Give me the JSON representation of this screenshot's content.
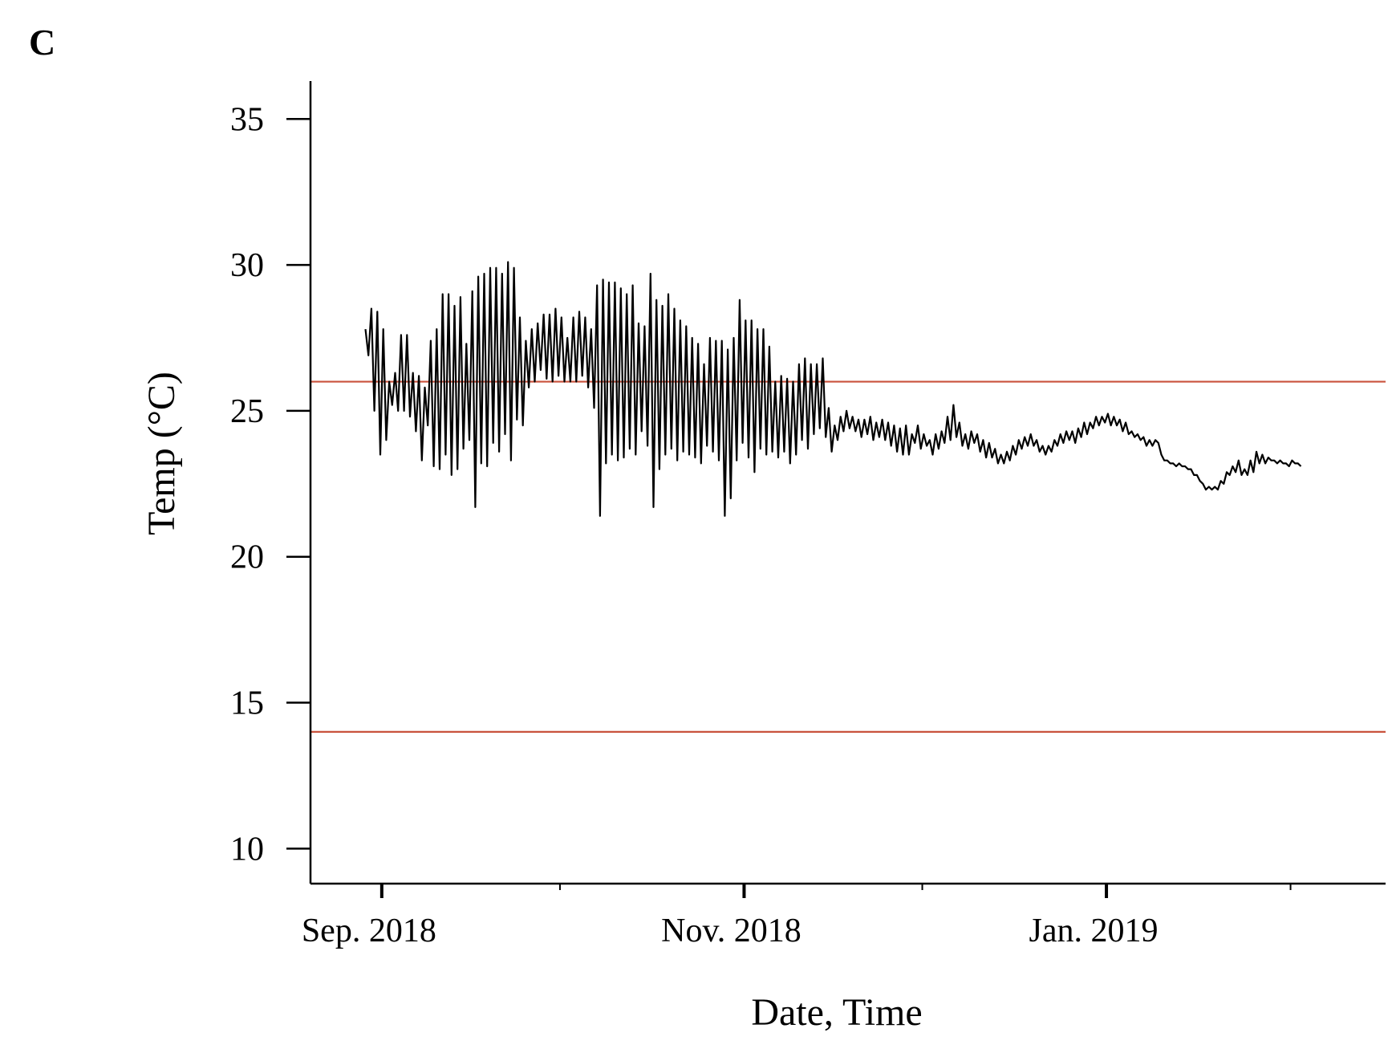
{
  "panel_label": "C",
  "colors": {
    "series": "#000000",
    "reference_line": "#c9523c",
    "axis": "#000000"
  },
  "chart_data": {
    "type": "line",
    "title": "",
    "xlabel": "Date, Time",
    "ylabel": "Temp (°C)",
    "ylim": [
      8.8,
      36.3
    ],
    "xlim": [
      "2018-08-20",
      "2019-02-17"
    ],
    "yticks": [
      10,
      15,
      20,
      25,
      30,
      35
    ],
    "ytick_labels": [
      "10",
      "15",
      "20",
      "25",
      "30",
      "35"
    ],
    "xticks": [
      {
        "date": "2018-09-01",
        "label": "Sep. 2018",
        "major": true
      },
      {
        "date": "2018-10-01",
        "label": "",
        "major": false
      },
      {
        "date": "2018-11-01",
        "label": "Nov. 2018",
        "major": true
      },
      {
        "date": "2018-12-01",
        "label": "",
        "major": false
      },
      {
        "date": "2019-01-01",
        "label": "Jan. 2019",
        "major": true
      },
      {
        "date": "2019-02-01",
        "label": "",
        "major": false
      }
    ],
    "reference_lines": [
      {
        "y": 26,
        "color": "#c9523c"
      },
      {
        "y": 14,
        "color": "#c9523c"
      }
    ],
    "grid": false,
    "legend": "none",
    "series": [
      {
        "x": [
          "2018-08-29",
          "2018-08-30",
          "2018-08-31",
          "2018-09-01",
          "2018-09-02",
          "2018-09-03",
          "2018-09-04",
          "2018-09-05",
          "2018-09-06",
          "2018-09-07",
          "2018-09-08",
          "2018-09-09",
          "2018-09-10",
          "2018-09-11",
          "2018-09-12",
          "2018-09-13",
          "2018-09-14",
          "2018-09-15",
          "2018-09-16",
          "2018-09-17",
          "2018-09-18",
          "2018-09-19",
          "2018-09-20",
          "2018-09-21",
          "2018-09-22",
          "2018-09-23",
          "2018-09-24",
          "2018-09-25",
          "2018-09-26",
          "2018-09-27",
          "2018-09-28",
          "2018-09-29",
          "2018-09-30",
          "2018-10-01",
          "2018-10-02",
          "2018-10-03",
          "2018-10-04",
          "2018-10-05",
          "2018-10-06",
          "2018-10-07",
          "2018-10-08",
          "2018-10-09",
          "2018-10-10",
          "2018-10-11",
          "2018-10-12",
          "2018-10-13",
          "2018-10-14",
          "2018-10-15",
          "2018-10-16",
          "2018-10-17",
          "2018-10-18",
          "2018-10-19",
          "2018-10-20",
          "2018-10-21",
          "2018-10-22",
          "2018-10-23",
          "2018-10-24",
          "2018-10-25",
          "2018-10-26",
          "2018-10-27",
          "2018-10-28",
          "2018-10-29",
          "2018-10-30",
          "2018-10-31",
          "2018-11-01",
          "2018-11-02",
          "2018-11-03",
          "2018-11-04",
          "2018-11-05",
          "2018-11-06",
          "2018-11-07",
          "2018-11-08",
          "2018-11-09",
          "2018-11-10",
          "2018-11-11",
          "2018-11-12",
          "2018-11-13",
          "2018-11-14",
          "2018-11-15",
          "2018-11-16",
          "2018-11-17",
          "2018-11-18",
          "2018-11-19",
          "2018-11-20",
          "2018-11-21",
          "2018-11-22",
          "2018-11-23",
          "2018-11-24",
          "2018-11-25",
          "2018-11-26",
          "2018-11-27",
          "2018-11-28",
          "2018-11-29",
          "2018-11-30",
          "2018-12-01",
          "2018-12-02",
          "2018-12-03",
          "2018-12-04",
          "2018-12-05",
          "2018-12-06",
          "2018-12-07",
          "2018-12-08",
          "2018-12-09",
          "2018-12-10",
          "2018-12-11",
          "2018-12-12",
          "2018-12-13",
          "2018-12-14",
          "2018-12-15",
          "2018-12-16",
          "2018-12-17",
          "2018-12-18",
          "2018-12-19",
          "2018-12-20",
          "2018-12-21",
          "2018-12-22",
          "2018-12-23",
          "2018-12-24",
          "2018-12-25",
          "2018-12-26",
          "2018-12-27",
          "2018-12-28",
          "2018-12-29",
          "2018-12-30",
          "2018-12-31",
          "2019-01-01",
          "2019-01-02",
          "2019-01-03",
          "2019-01-04",
          "2019-01-05",
          "2019-01-06",
          "2019-01-07",
          "2019-01-08",
          "2019-01-09",
          "2019-01-10",
          "2019-01-11",
          "2019-01-12",
          "2019-01-13",
          "2019-01-14",
          "2019-01-15",
          "2019-01-16",
          "2019-01-17",
          "2019-01-18",
          "2019-01-19",
          "2019-01-20",
          "2019-01-21",
          "2019-01-22",
          "2019-01-23",
          "2019-01-24",
          "2019-01-25",
          "2019-01-26",
          "2019-01-27",
          "2019-01-28",
          "2019-01-29",
          "2019-01-30",
          "2019-01-31",
          "2019-02-01",
          "2019-02-02",
          "2019-02-03",
          "2019-02-04",
          "2019-02-05",
          "2019-02-06",
          "2019-02-07",
          "2019-02-08",
          "2019-02-09",
          "2019-02-10",
          "2019-02-11",
          "2019-02-12",
          "2019-02-13",
          "2019-02-14",
          "2019-02-15",
          "2019-02-16"
        ],
        "max": [
          27.8,
          28.5,
          28.4,
          27.8,
          26.0,
          26.3,
          27.6,
          27.6,
          26.3,
          26.2,
          25.8,
          27.4,
          27.8,
          29.0,
          29.0,
          28.6,
          28.9,
          27.3,
          29.1,
          29.6,
          29.7,
          29.9,
          29.9,
          29.7,
          30.1,
          29.9,
          28.2,
          27.4,
          27.8,
          28.0,
          28.3,
          28.3,
          28.5,
          28.2,
          27.5,
          28.2,
          28.4,
          28.2,
          27.8,
          29.3,
          29.5,
          29.4,
          29.4,
          29.2,
          29.0,
          29.3,
          28.0,
          27.9,
          29.7,
          28.8,
          28.6,
          29.0,
          28.5,
          28.1,
          27.9,
          27.5,
          27.3,
          26.6,
          27.5,
          27.4,
          27.4,
          27.1,
          27.5,
          28.8,
          28.1,
          28.1,
          27.8,
          27.8,
          27.2,
          26.0,
          26.2,
          26.1,
          26.0,
          26.6,
          26.8,
          26.6,
          26.6,
          26.8,
          25.1,
          24.5,
          24.8,
          25.0,
          24.8,
          24.7,
          24.7,
          24.8,
          24.6,
          24.7,
          24.6,
          24.5,
          24.4,
          24.5,
          24.2,
          24.5,
          24.2,
          24.0,
          24.2,
          24.3,
          24.8,
          25.2,
          24.6,
          24.2,
          24.3,
          24.2,
          24.0,
          23.9,
          23.7,
          23.5,
          23.6,
          23.8,
          24.0,
          24.1,
          24.2,
          24.0,
          23.8,
          23.8,
          24.0,
          24.2,
          24.3,
          24.3,
          24.4,
          24.6,
          24.6,
          24.8,
          24.8,
          24.9,
          24.8,
          24.7,
          24.6,
          24.3,
          24.2,
          24.1,
          24.0,
          24.0,
          23.5,
          23.3,
          23.2,
          23.2,
          23.1,
          23.0,
          22.8,
          22.5,
          22.4,
          22.4,
          22.6,
          22.9,
          23.1,
          23.3,
          23.0,
          23.3,
          23.6,
          23.5,
          23.4,
          23.3,
          23.3,
          23.2,
          23.3,
          23.2
        ],
        "min": [
          26.9,
          25.0,
          23.5,
          24.0,
          25.2,
          25.0,
          25.0,
          24.8,
          24.3,
          23.3,
          24.5,
          23.1,
          23.0,
          23.5,
          22.8,
          23.0,
          23.7,
          24.0,
          21.7,
          23.2,
          23.1,
          23.9,
          23.6,
          24.2,
          23.3,
          24.7,
          24.5,
          25.8,
          26.0,
          26.4,
          26.1,
          26.0,
          26.2,
          26.0,
          26.0,
          26.0,
          26.2,
          25.8,
          25.1,
          21.4,
          23.2,
          23.5,
          23.3,
          23.4,
          23.7,
          23.5,
          24.3,
          23.8,
          21.7,
          23.0,
          23.5,
          23.7,
          23.3,
          23.6,
          23.5,
          23.4,
          23.2,
          23.8,
          23.6,
          23.3,
          21.4,
          22.0,
          23.3,
          23.9,
          23.4,
          22.9,
          23.7,
          23.5,
          23.6,
          23.4,
          23.6,
          23.2,
          23.5,
          24.0,
          23.7,
          24.2,
          24.4,
          24.1,
          23.6,
          24.0,
          24.3,
          24.4,
          24.3,
          24.1,
          24.2,
          24.0,
          24.1,
          24.0,
          23.8,
          23.6,
          23.5,
          23.5,
          23.9,
          23.7,
          23.8,
          23.5,
          23.7,
          23.9,
          24.0,
          24.1,
          23.8,
          23.7,
          23.9,
          23.6,
          23.4,
          23.4,
          23.2,
          23.2,
          23.3,
          23.5,
          23.7,
          23.8,
          23.8,
          23.6,
          23.5,
          23.6,
          23.8,
          23.9,
          24.0,
          23.9,
          24.1,
          24.2,
          24.4,
          24.5,
          24.6,
          24.5,
          24.5,
          24.3,
          24.2,
          24.1,
          24.0,
          23.8,
          23.8,
          23.9,
          23.3,
          23.2,
          23.1,
          23.1,
          23.0,
          22.8,
          22.6,
          22.3,
          22.3,
          22.3,
          22.5,
          22.8,
          22.9,
          22.8,
          22.8,
          22.9,
          23.2,
          23.2,
          23.3,
          23.2,
          23.2,
          23.1,
          23.2,
          23.1
        ]
      }
    ]
  }
}
